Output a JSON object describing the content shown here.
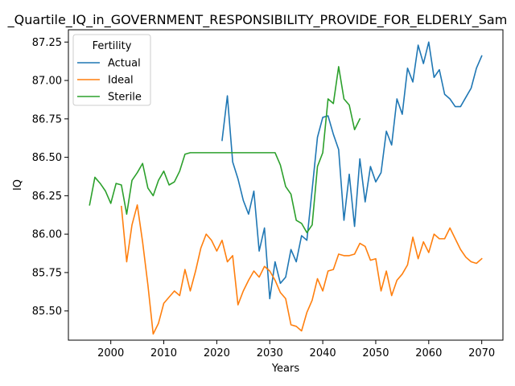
{
  "chart_data": {
    "type": "line",
    "title": "_Quartile_IQ_in_GOVERNMENT_RESPONSIBILITY_PROVIDE_FOR_ELDERLY_Sam",
    "xlabel": "Years",
    "ylabel": "IQ",
    "xlim": [
      1992,
      2074
    ],
    "ylim": [
      85.31,
      87.33
    ],
    "xticks": [
      2000,
      2010,
      2020,
      2030,
      2040,
      2050,
      2060,
      2070
    ],
    "yticks": [
      85.5,
      85.75,
      86.0,
      86.25,
      86.5,
      86.75,
      87.0,
      87.25
    ],
    "ytick_labels": [
      "85.50",
      "85.75",
      "86.00",
      "86.25",
      "86.50",
      "86.75",
      "87.00",
      "87.25"
    ],
    "legend": {
      "title": "Fertility",
      "placement": "top-left"
    },
    "series": [
      {
        "name": "Actual",
        "color": "#1f77b4",
        "x": [
          2021,
          2022,
          2023,
          2024,
          2025,
          2026,
          2027,
          2028,
          2029,
          2030,
          2031,
          2032,
          2033,
          2034,
          2035,
          2036,
          2037,
          2038,
          2039,
          2040,
          2041,
          2042,
          2043,
          2044,
          2045,
          2046,
          2047,
          2048,
          2049,
          2050,
          2051,
          2052,
          2053,
          2054,
          2055,
          2056,
          2057,
          2058,
          2059,
          2060,
          2061,
          2062,
          2063,
          2064,
          2065,
          2066,
          2067,
          2068,
          2069,
          2070
        ],
        "y": [
          86.61,
          86.9,
          86.47,
          86.36,
          86.22,
          86.13,
          86.28,
          85.89,
          86.04,
          85.58,
          85.82,
          85.68,
          85.72,
          85.9,
          85.82,
          85.99,
          85.96,
          86.29,
          86.63,
          86.76,
          86.77,
          86.65,
          86.55,
          86.09,
          86.39,
          86.05,
          86.49,
          86.21,
          86.44,
          86.34,
          86.4,
          86.67,
          86.58,
          86.88,
          86.78,
          87.08,
          86.99,
          87.23,
          87.11,
          87.25,
          87.02,
          87.07,
          86.91,
          86.88,
          86.83,
          86.83,
          86.89,
          86.95,
          87.08,
          87.16
        ]
      },
      {
        "name": "Ideal",
        "color": "#ff7f0e",
        "x": [
          2002,
          2003,
          2004,
          2005,
          2006,
          2007,
          2008,
          2009,
          2010,
          2011,
          2012,
          2013,
          2014,
          2015,
          2016,
          2017,
          2018,
          2019,
          2020,
          2021,
          2022,
          2023,
          2024,
          2025,
          2026,
          2027,
          2028,
          2029,
          2030,
          2031,
          2032,
          2033,
          2034,
          2035,
          2036,
          2037,
          2038,
          2039,
          2040,
          2041,
          2042,
          2043,
          2044,
          2045,
          2046,
          2047,
          2048,
          2049,
          2050,
          2051,
          2052,
          2053,
          2054,
          2055,
          2056,
          2057,
          2058,
          2059,
          2060,
          2061,
          2062,
          2063,
          2064,
          2065,
          2066,
          2067,
          2068,
          2069,
          2070
        ],
        "y": [
          86.18,
          85.82,
          86.06,
          86.19,
          85.95,
          85.67,
          85.35,
          85.42,
          85.55,
          85.59,
          85.63,
          85.6,
          85.77,
          85.63,
          85.76,
          85.91,
          86.0,
          85.96,
          85.89,
          85.96,
          85.82,
          85.86,
          85.54,
          85.63,
          85.7,
          85.76,
          85.72,
          85.79,
          85.76,
          85.7,
          85.62,
          85.58,
          85.41,
          85.4,
          85.37,
          85.49,
          85.57,
          85.71,
          85.63,
          85.76,
          85.77,
          85.87,
          85.86,
          85.86,
          85.87,
          85.94,
          85.92,
          85.83,
          85.84,
          85.63,
          85.76,
          85.6,
          85.7,
          85.74,
          85.8,
          85.98,
          85.84,
          85.95,
          85.88,
          86.0,
          85.97,
          85.97,
          86.04,
          85.97,
          85.9,
          85.85,
          85.82,
          85.81,
          85.84
        ]
      },
      {
        "name": "Sterile",
        "color": "#2ca02c",
        "x": [
          1996,
          1997,
          1998,
          1999,
          2000,
          2001,
          2002,
          2003,
          2004,
          2005,
          2006,
          2007,
          2008,
          2009,
          2010,
          2011,
          2012,
          2013,
          2014,
          2015,
          2016,
          2017,
          2018,
          2019,
          2020,
          2021,
          2022,
          2023,
          2024,
          2025,
          2026,
          2027,
          2028,
          2029,
          2030,
          2031,
          2032,
          2033,
          2034,
          2035,
          2036,
          2037,
          2038,
          2039,
          2040,
          2041,
          2042,
          2043,
          2044,
          2045,
          2046,
          2047
        ],
        "y": [
          86.19,
          86.37,
          86.33,
          86.28,
          86.2,
          86.33,
          86.32,
          86.13,
          86.35,
          86.4,
          86.46,
          86.3,
          86.25,
          86.35,
          86.41,
          86.32,
          86.34,
          86.41,
          86.52,
          86.53,
          86.53,
          86.53,
          86.53,
          86.53,
          86.53,
          86.53,
          86.53,
          86.53,
          86.53,
          86.53,
          86.53,
          86.53,
          86.53,
          86.53,
          86.53,
          86.53,
          86.45,
          86.31,
          86.26,
          86.09,
          86.07,
          86.01,
          86.06,
          86.44,
          86.53,
          86.88,
          86.85,
          87.09,
          86.88,
          86.84,
          86.68,
          86.75
        ]
      }
    ]
  }
}
